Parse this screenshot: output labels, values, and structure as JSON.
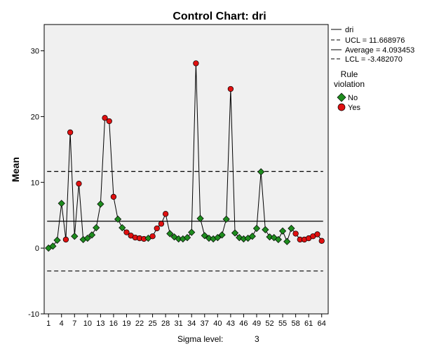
{
  "chart_data": {
    "type": "line",
    "title": "Control Chart: dri",
    "ylabel": "Mean",
    "xlabel": "",
    "ylim": [
      -10,
      34
    ],
    "xlim": [
      0,
      65.5
    ],
    "y_ticks": [
      -10,
      0,
      10,
      20,
      30
    ],
    "x_ticks": [
      1,
      4,
      7,
      10,
      13,
      16,
      19,
      22,
      25,
      28,
      31,
      34,
      37,
      40,
      43,
      46,
      49,
      52,
      55,
      58,
      61,
      64
    ],
    "grid": false,
    "legend_position": "right",
    "ucl": 11.668976,
    "average": 4.093453,
    "lcl": -3.48207,
    "legend": {
      "series_label": "dri",
      "ucl_label": "UCL = 11.668976",
      "average_label": "Average = 4.093453",
      "lcl_label": "LCL = -3.482070",
      "rule_title_line1": "Rule",
      "rule_title_line2": "violation",
      "no_label": "No",
      "yes_label": "Yes"
    },
    "footer": {
      "sigma_label": "Sigma level:",
      "sigma_value": "3"
    },
    "colors": {
      "plot_background": "#f0f0f0",
      "line": "#000000",
      "no_marker": "#1e8c1e",
      "yes_marker": "#e01010"
    },
    "series": [
      {
        "name": "dri",
        "x": [
          1,
          2,
          3,
          4,
          5,
          6,
          7,
          8,
          9,
          10,
          11,
          12,
          13,
          14,
          15,
          16,
          17,
          18,
          19,
          20,
          21,
          22,
          23,
          24,
          25,
          26,
          27,
          28,
          29,
          30,
          31,
          32,
          33,
          34,
          35,
          36,
          37,
          38,
          39,
          40,
          41,
          42,
          43,
          44,
          45,
          46,
          47,
          48,
          49,
          50,
          51,
          52,
          53,
          54,
          55,
          56,
          57,
          58,
          59,
          60,
          61,
          62,
          63,
          64
        ],
        "values": [
          0.0,
          0.3,
          1.2,
          6.8,
          1.3,
          17.6,
          1.8,
          9.8,
          1.3,
          1.5,
          2.0,
          3.1,
          6.7,
          19.8,
          19.3,
          7.8,
          4.4,
          3.1,
          2.4,
          1.9,
          1.6,
          1.5,
          1.4,
          1.5,
          1.8,
          3.0,
          3.7,
          5.2,
          2.2,
          1.7,
          1.4,
          1.4,
          1.6,
          2.4,
          28.1,
          4.5,
          1.9,
          1.5,
          1.4,
          1.6,
          2.0,
          4.4,
          24.2,
          2.3,
          1.6,
          1.4,
          1.5,
          1.8,
          3.0,
          11.6,
          2.8,
          1.7,
          1.6,
          1.3,
          2.6,
          1.0,
          3.0,
          2.2,
          1.3,
          1.3,
          1.5,
          1.8,
          2.1,
          1.1
        ],
        "violation": [
          "No",
          "No",
          "No",
          "No",
          "Yes",
          "Yes",
          "No",
          "Yes",
          "No",
          "No",
          "No",
          "No",
          "No",
          "Yes",
          "Yes",
          "Yes",
          "No",
          "No",
          "Yes",
          "Yes",
          "Yes",
          "Yes",
          "Yes",
          "No",
          "Yes",
          "Yes",
          "Yes",
          "Yes",
          "No",
          "No",
          "No",
          "No",
          "No",
          "No",
          "Yes",
          "No",
          "No",
          "No",
          "No",
          "No",
          "No",
          "No",
          "Yes",
          "No",
          "No",
          "No",
          "No",
          "No",
          "No",
          "No",
          "No",
          "No",
          "No",
          "No",
          "No",
          "No",
          "No",
          "Yes",
          "Yes",
          "Yes",
          "Yes",
          "Yes",
          "Yes",
          "Yes"
        ]
      }
    ]
  }
}
